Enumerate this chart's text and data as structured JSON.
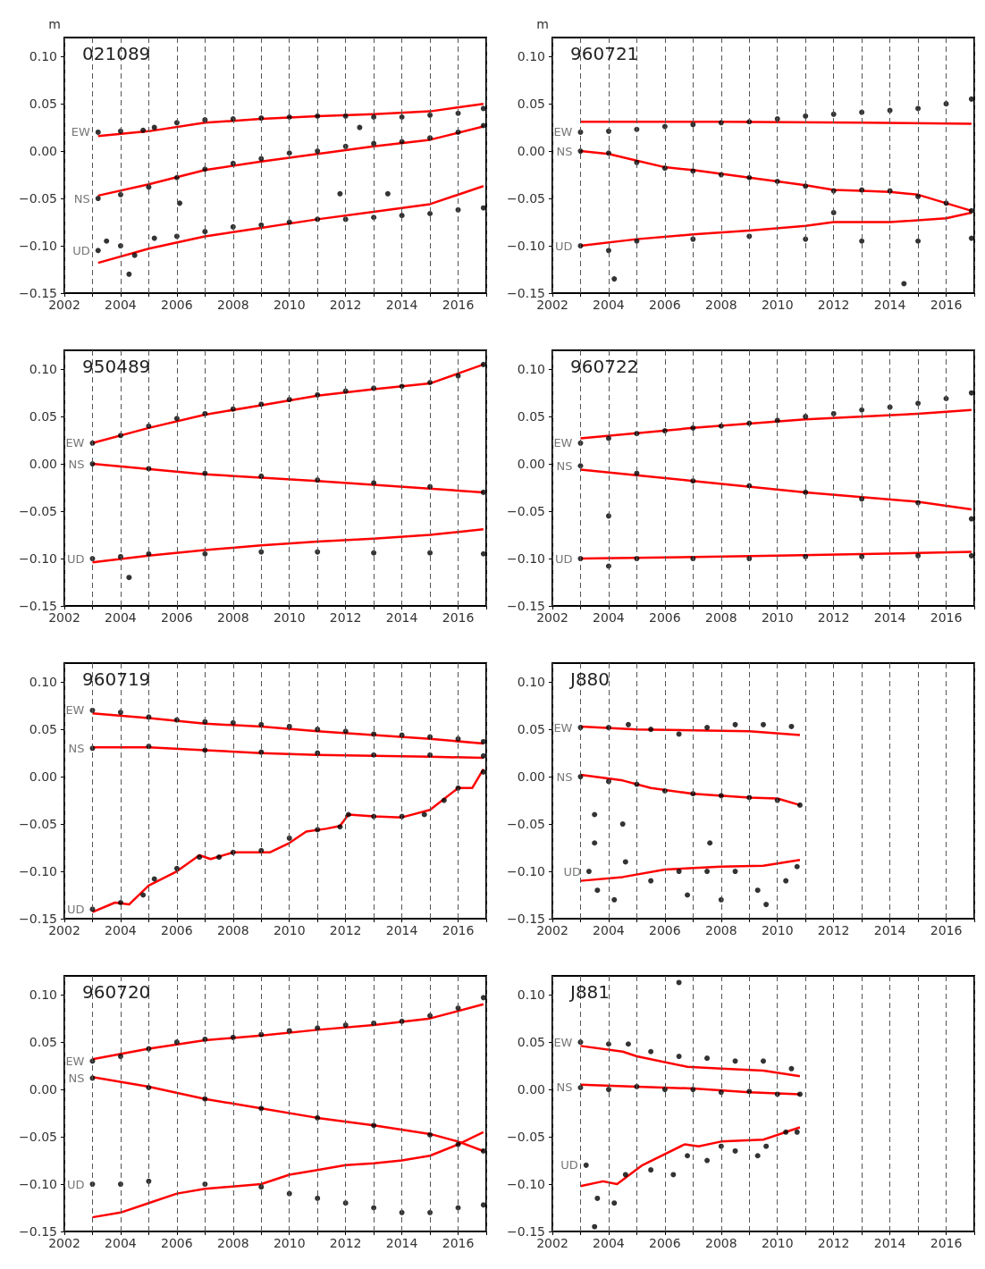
{
  "chart_data": [
    {
      "type": "scatter",
      "annotations": [
        "021089"
      ],
      "ylabel": "m",
      "xlim": [
        2002,
        2017
      ],
      "xticks": [
        2002,
        {
          "value": 2003,
          "label": null
        },
        2004,
        {
          "value": 2005,
          "label": null
        },
        2006,
        {
          "value": 2007,
          "label": null
        },
        2008,
        {
          "value": 2009,
          "label": null
        },
        2010,
        {
          "value": 2011,
          "label": null
        },
        2012,
        {
          "value": 2013,
          "label": null
        },
        2014,
        {
          "value": 2015,
          "label": null
        },
        2016,
        {
          "value": 2017,
          "label": null
        }
      ],
      "ylim": [
        -0.15,
        0.12
      ],
      "yticks": [
        {
          "value": -0.15,
          "label": "−0.15"
        },
        {
          "value": -0.1,
          "label": "−0.10"
        },
        {
          "value": -0.05,
          "label": "−0.05"
        },
        {
          "value": 0,
          "label": "0.00"
        },
        {
          "value": 0.05,
          "label": "0.05"
        },
        {
          "value": 0.1,
          "label": "0.10"
        }
      ],
      "grid": "x",
      "marker": "circle",
      "series": [
        {
          "name": "EW",
          "color": "#000000",
          "x": [
            2003.2,
            2004,
            2004.8,
            2005.2,
            2006,
            2007,
            2008,
            2009,
            2010,
            2011,
            2012,
            2012.5,
            2013,
            2014,
            2015,
            2016,
            2016.9
          ],
          "values": [
            0.02,
            0.021,
            0.022,
            0.025,
            0.03,
            0.033,
            0.034,
            0.035,
            0.036,
            0.037,
            0.037,
            0.025,
            0.036,
            0.036,
            0.038,
            0.04,
            0.045
          ]
        },
        {
          "type": "line",
          "marker": "none",
          "color": "#ff0000",
          "x": [
            2003.2,
            2005,
            2007,
            2009,
            2011,
            2013,
            2015,
            2016.9
          ],
          "values": [
            0.016,
            0.021,
            0.03,
            0.034,
            0.037,
            0.039,
            0.042,
            0.05
          ]
        },
        {
          "name": "NS",
          "color": "#000000",
          "x": [
            2003.2,
            2004,
            2005,
            2006,
            2007,
            2008,
            2009,
            2010,
            2011,
            2012,
            2013,
            2014,
            2015,
            2016,
            2016.9
          ],
          "values": [
            -0.05,
            -0.046,
            -0.038,
            -0.028,
            -0.019,
            -0.013,
            -0.008,
            -0.002,
            0,
            0.005,
            0.008,
            0.01,
            0.014,
            0.02,
            0.027
          ]
        },
        {
          "type": "line",
          "marker": "none",
          "color": "#ff0000",
          "x": [
            2003.2,
            2005,
            2007,
            2009,
            2011,
            2013,
            2015,
            2016.9
          ],
          "values": [
            -0.047,
            -0.035,
            -0.02,
            -0.011,
            -0.003,
            0.005,
            0.012,
            0.026
          ]
        },
        {
          "name": "UD",
          "color": "#000000",
          "x": [
            2003.2,
            2003.5,
            2004,
            2004.3,
            2004.5,
            2005.2,
            2006,
            2006.1,
            2007,
            2008,
            2009,
            2010,
            2011,
            2011.8,
            2012,
            2013,
            2013.5,
            2014,
            2015,
            2016,
            2016.9
          ],
          "values": [
            -0.105,
            -0.095,
            -0.1,
            -0.13,
            -0.11,
            -0.092,
            -0.09,
            -0.055,
            -0.085,
            -0.08,
            -0.078,
            -0.075,
            -0.072,
            -0.045,
            -0.072,
            -0.07,
            -0.045,
            -0.068,
            -0.066,
            -0.062,
            -0.06
          ]
        },
        {
          "type": "line",
          "marker": "none",
          "color": "#ff0000",
          "x": [
            2003.2,
            2005,
            2007,
            2009,
            2011,
            2013,
            2015,
            2016.9
          ],
          "values": [
            -0.118,
            -0.103,
            -0.09,
            -0.081,
            -0.072,
            -0.064,
            -0.056,
            -0.037
          ]
        }
      ]
    },
    {
      "type": "scatter",
      "annotations": [
        "960721"
      ],
      "ylabel": "m",
      "xlim": [
        2002,
        2017
      ],
      "xticks": [
        2002,
        {
          "value": 2003,
          "label": null
        },
        2004,
        {
          "value": 2005,
          "label": null
        },
        2006,
        {
          "value": 2007,
          "label": null
        },
        2008,
        {
          "value": 2009,
          "label": null
        },
        2010,
        {
          "value": 2011,
          "label": null
        },
        2012,
        {
          "value": 2013,
          "label": null
        },
        2014,
        {
          "value": 2015,
          "label": null
        },
        2016,
        {
          "value": 2017,
          "label": null
        }
      ],
      "ylim": [
        -0.15,
        0.12
      ],
      "yticks": [
        {
          "value": -0.15,
          "label": "−0.15"
        },
        {
          "value": -0.1,
          "label": "−0.10"
        },
        {
          "value": -0.05,
          "label": "−0.05"
        },
        {
          "value": 0,
          "label": "0.00"
        },
        {
          "value": 0.05,
          "label": "0.05"
        },
        {
          "value": 0.1,
          "label": "0.10"
        }
      ],
      "grid": "x",
      "marker": "circle",
      "series": [
        {
          "name": "EW",
          "color": "#000000",
          "x": [
            2003,
            2004,
            2005,
            2006,
            2007,
            2008,
            2009,
            2010,
            2011,
            2012,
            2013,
            2014,
            2015,
            2016,
            2016.9
          ],
          "values": [
            0.02,
            0.021,
            0.023,
            0.026,
            0.028,
            0.03,
            0.031,
            0.034,
            0.037,
            0.039,
            0.041,
            0.043,
            0.045,
            0.05,
            0.055
          ]
        },
        {
          "type": "line",
          "marker": "none",
          "color": "#ff0000",
          "x": [
            2003,
            2008,
            2013,
            2016.9
          ],
          "values": [
            0.031,
            0.031,
            0.03,
            0.029
          ]
        },
        {
          "name": "NS",
          "color": "#000000",
          "x": [
            2003,
            2004,
            2005,
            2006,
            2007,
            2008,
            2009,
            2010,
            2011,
            2012,
            2013,
            2014,
            2015,
            2016,
            2016.9
          ],
          "values": [
            0,
            -0.002,
            -0.012,
            -0.018,
            -0.021,
            -0.025,
            -0.028,
            -0.032,
            -0.037,
            -0.042,
            -0.041,
            -0.042,
            -0.048,
            -0.055,
            -0.063
          ]
        },
        {
          "type": "line",
          "marker": "none",
          "color": "#ff0000",
          "x": [
            2003,
            2004,
            2005,
            2006,
            2007,
            2008,
            2009,
            2010,
            2011,
            2012,
            2013,
            2014,
            2015,
            2016,
            2016.9
          ],
          "values": [
            0,
            -0.003,
            -0.01,
            -0.017,
            -0.02,
            -0.024,
            -0.028,
            -0.032,
            -0.036,
            -0.041,
            -0.042,
            -0.043,
            -0.046,
            -0.055,
            -0.063
          ]
        },
        {
          "name": "UD",
          "color": "#000000",
          "x": [
            2003,
            2004,
            2004.2,
            2005,
            2007,
            2009,
            2011,
            2012,
            2013,
            2014.5,
            2015,
            2016.9
          ],
          "values": [
            -0.1,
            -0.105,
            -0.135,
            -0.095,
            -0.093,
            -0.09,
            -0.093,
            -0.065,
            -0.095,
            -0.14,
            -0.095,
            -0.092
          ]
        },
        {
          "type": "line",
          "marker": "none",
          "color": "#ff0000",
          "x": [
            2003,
            2005,
            2007,
            2009,
            2011,
            2012,
            2014,
            2016,
            2016.9
          ],
          "values": [
            -0.1,
            -0.093,
            -0.088,
            -0.084,
            -0.079,
            -0.075,
            -0.075,
            -0.071,
            -0.065
          ]
        }
      ]
    },
    {
      "type": "scatter",
      "annotations": [
        "950489"
      ],
      "xlim": [
        2002,
        2017
      ],
      "xticks": [
        2002,
        {
          "value": 2003,
          "label": null
        },
        2004,
        {
          "value": 2005,
          "label": null
        },
        2006,
        {
          "value": 2007,
          "label": null
        },
        2008,
        {
          "value": 2009,
          "label": null
        },
        2010,
        {
          "value": 2011,
          "label": null
        },
        2012,
        {
          "value": 2013,
          "label": null
        },
        2014,
        {
          "value": 2015,
          "label": null
        },
        2016,
        {
          "value": 2017,
          "label": null
        }
      ],
      "ylim": [
        -0.15,
        0.12
      ],
      "yticks": [
        {
          "value": -0.15,
          "label": "−0.15"
        },
        {
          "value": -0.1,
          "label": "−0.10"
        },
        {
          "value": -0.05,
          "label": "−0.05"
        },
        {
          "value": 0,
          "label": "0.00"
        },
        {
          "value": 0.05,
          "label": "0.05"
        },
        {
          "value": 0.1,
          "label": "0.10"
        }
      ],
      "grid": "x",
      "marker": "circle",
      "series": [
        {
          "name": "EW",
          "color": "#000000",
          "x": [
            2003,
            2004,
            2005,
            2006,
            2007,
            2008,
            2009,
            2010,
            2011,
            2012,
            2013,
            2014,
            2015,
            2016,
            2016.9
          ],
          "values": [
            0.022,
            0.03,
            0.04,
            0.048,
            0.053,
            0.058,
            0.063,
            0.068,
            0.073,
            0.077,
            0.08,
            0.082,
            0.086,
            0.093,
            0.105
          ]
        },
        {
          "type": "line",
          "marker": "none",
          "color": "#ff0000",
          "x": [
            2003,
            2005,
            2007,
            2009,
            2011,
            2013,
            2015,
            2016.9
          ],
          "values": [
            0.022,
            0.038,
            0.052,
            0.062,
            0.072,
            0.079,
            0.085,
            0.105
          ]
        },
        {
          "name": "NS",
          "color": "#000000",
          "x": [
            2003,
            2005,
            2007,
            2009,
            2011,
            2013,
            2015,
            2016.9
          ],
          "values": [
            0,
            -0.005,
            -0.01,
            -0.013,
            -0.017,
            -0.02,
            -0.024,
            -0.03
          ]
        },
        {
          "type": "line",
          "marker": "none",
          "color": "#ff0000",
          "x": [
            2003,
            2007,
            2011,
            2016.9
          ],
          "values": [
            0,
            -0.011,
            -0.018,
            -0.03
          ]
        },
        {
          "name": "UD",
          "color": "#000000",
          "x": [
            2003,
            2004,
            2004.3,
            2005,
            2007,
            2009,
            2011,
            2013,
            2015,
            2016.9
          ],
          "values": [
            -0.1,
            -0.098,
            -0.12,
            -0.095,
            -0.095,
            -0.093,
            -0.093,
            -0.094,
            -0.094,
            -0.095
          ]
        },
        {
          "type": "line",
          "marker": "none",
          "color": "#ff0000",
          "x": [
            2003,
            2005,
            2007,
            2009,
            2011,
            2013,
            2015,
            2016.9
          ],
          "values": [
            -0.104,
            -0.097,
            -0.091,
            -0.086,
            -0.082,
            -0.079,
            -0.075,
            -0.069
          ]
        }
      ]
    },
    {
      "type": "scatter",
      "annotations": [
        "960722"
      ],
      "xlim": [
        2002,
        2017
      ],
      "xticks": [
        2002,
        {
          "value": 2003,
          "label": null
        },
        2004,
        {
          "value": 2005,
          "label": null
        },
        2006,
        {
          "value": 2007,
          "label": null
        },
        2008,
        {
          "value": 2009,
          "label": null
        },
        2010,
        {
          "value": 2011,
          "label": null
        },
        2012,
        {
          "value": 2013,
          "label": null
        },
        2014,
        {
          "value": 2015,
          "label": null
        },
        2016,
        {
          "value": 2017,
          "label": null
        }
      ],
      "ylim": [
        -0.15,
        0.12
      ],
      "yticks": [
        {
          "value": -0.15,
          "label": "−0.15"
        },
        {
          "value": -0.1,
          "label": "−0.10"
        },
        {
          "value": -0.05,
          "label": "−0.05"
        },
        {
          "value": 0,
          "label": "0.00"
        },
        {
          "value": 0.05,
          "label": "0.05"
        },
        {
          "value": 0.1,
          "label": "0.10"
        }
      ],
      "grid": "x",
      "marker": "circle",
      "series": [
        {
          "name": "EW",
          "color": "#000000",
          "x": [
            2003,
            2004,
            2005,
            2006,
            2007,
            2008,
            2009,
            2010,
            2011,
            2012,
            2013,
            2014,
            2015,
            2016,
            2016.9
          ],
          "values": [
            0.022,
            0.027,
            0.032,
            0.035,
            0.038,
            0.04,
            0.043,
            0.046,
            0.05,
            0.053,
            0.057,
            0.06,
            0.064,
            0.069,
            0.075
          ]
        },
        {
          "type": "line",
          "marker": "none",
          "color": "#ff0000",
          "x": [
            2003,
            2007,
            2011,
            2015,
            2016.9
          ],
          "values": [
            0.027,
            0.038,
            0.047,
            0.053,
            0.057
          ]
        },
        {
          "name": "NS",
          "color": "#000000",
          "x": [
            2003,
            2004,
            2005,
            2007,
            2009,
            2011,
            2013,
            2015,
            2016.9
          ],
          "values": [
            -0.002,
            -0.055,
            -0.01,
            -0.018,
            -0.023,
            -0.03,
            -0.037,
            -0.041,
            -0.058
          ]
        },
        {
          "type": "line",
          "marker": "none",
          "color": "#ff0000",
          "x": [
            2003,
            2007,
            2011,
            2015,
            2016.9
          ],
          "values": [
            -0.006,
            -0.018,
            -0.03,
            -0.04,
            -0.048
          ]
        },
        {
          "name": "UD",
          "color": "#000000",
          "x": [
            2003,
            2004,
            2005,
            2007,
            2009,
            2011,
            2013,
            2015,
            2016.9
          ],
          "values": [
            -0.1,
            -0.108,
            -0.1,
            -0.1,
            -0.1,
            -0.098,
            -0.098,
            -0.097,
            -0.097
          ]
        },
        {
          "type": "line",
          "marker": "none",
          "color": "#ff0000",
          "x": [
            2003,
            2010,
            2016.9
          ],
          "values": [
            -0.1,
            -0.097,
            -0.093
          ]
        }
      ]
    },
    {
      "type": "scatter",
      "annotations": [
        "960719"
      ],
      "xlim": [
        2002,
        2017
      ],
      "xticks": [
        2002,
        {
          "value": 2003,
          "label": null
        },
        2004,
        {
          "value": 2005,
          "label": null
        },
        2006,
        {
          "value": 2007,
          "label": null
        },
        2008,
        {
          "value": 2009,
          "label": null
        },
        2010,
        {
          "value": 2011,
          "label": null
        },
        2012,
        {
          "value": 2013,
          "label": null
        },
        2014,
        {
          "value": 2015,
          "label": null
        },
        2016,
        {
          "value": 2017,
          "label": null
        }
      ],
      "ylim": [
        -0.15,
        0.12
      ],
      "yticks": [
        {
          "value": -0.15,
          "label": "−0.15"
        },
        {
          "value": -0.1,
          "label": "−0.10"
        },
        {
          "value": -0.05,
          "label": "−0.05"
        },
        {
          "value": 0,
          "label": "0.00"
        },
        {
          "value": 0.05,
          "label": "0.05"
        },
        {
          "value": 0.1,
          "label": "0.10"
        }
      ],
      "grid": "x",
      "marker": "circle",
      "series": [
        {
          "name": "EW",
          "color": "#000000",
          "x": [
            2003,
            2004,
            2005,
            2006,
            2007,
            2008,
            2009,
            2010,
            2011,
            2012,
            2013,
            2014,
            2015,
            2016,
            2016.9
          ],
          "values": [
            0.07,
            0.068,
            0.063,
            0.06,
            0.058,
            0.057,
            0.055,
            0.053,
            0.05,
            0.048,
            0.045,
            0.044,
            0.042,
            0.04,
            0.037
          ]
        },
        {
          "type": "line",
          "marker": "none",
          "color": "#ff0000",
          "x": [
            2003,
            2005,
            2007,
            2009,
            2011,
            2013,
            2015,
            2016.9
          ],
          "values": [
            0.067,
            0.062,
            0.056,
            0.053,
            0.048,
            0.044,
            0.04,
            0.035
          ]
        },
        {
          "name": "NS",
          "color": "#000000",
          "x": [
            2003,
            2005,
            2007,
            2009,
            2011,
            2013,
            2015,
            2016.9
          ],
          "values": [
            0.03,
            0.032,
            0.028,
            0.026,
            0.025,
            0.023,
            0.023,
            0.022
          ]
        },
        {
          "type": "line",
          "marker": "none",
          "color": "#ff0000",
          "x": [
            2003,
            2005,
            2007,
            2009,
            2011,
            2013,
            2015,
            2016.9
          ],
          "values": [
            0.031,
            0.031,
            0.028,
            0.025,
            0.023,
            0.022,
            0.021,
            0.02
          ]
        },
        {
          "name": "UD",
          "color": "#000000",
          "x": [
            2003,
            2004,
            2004.8,
            2005.2,
            2006,
            2006.8,
            2007.5,
            2008,
            2009,
            2010,
            2011,
            2011.8,
            2012.1,
            2013,
            2014,
            2014.8,
            2015.5,
            2016,
            2016.9
          ],
          "values": [
            -0.14,
            -0.133,
            -0.125,
            -0.108,
            -0.097,
            -0.085,
            -0.085,
            -0.08,
            -0.078,
            -0.065,
            -0.056,
            -0.053,
            -0.04,
            -0.042,
            -0.042,
            -0.04,
            -0.025,
            -0.012,
            0.005
          ]
        },
        {
          "type": "line",
          "marker": "none",
          "color": "#ff0000",
          "x": [
            2003,
            2003.8,
            2004.3,
            2005,
            2006,
            2006.8,
            2007.2,
            2008,
            2009.3,
            2010,
            2010.6,
            2011.3,
            2011.8,
            2012.1,
            2013,
            2014,
            2015,
            2016,
            2016.5,
            2016.9
          ],
          "values": [
            -0.143,
            -0.133,
            -0.135,
            -0.115,
            -0.1,
            -0.083,
            -0.087,
            -0.08,
            -0.08,
            -0.07,
            -0.058,
            -0.055,
            -0.052,
            -0.04,
            -0.042,
            -0.043,
            -0.035,
            -0.012,
            -0.012,
            0.008
          ]
        }
      ]
    },
    {
      "type": "scatter",
      "annotations": [
        "J880"
      ],
      "xlim": [
        2002,
        2017
      ],
      "xticks": [
        2002,
        {
          "value": 2003,
          "label": null
        },
        2004,
        {
          "value": 2005,
          "label": null
        },
        2006,
        {
          "value": 2007,
          "label": null
        },
        2008,
        {
          "value": 2009,
          "label": null
        },
        2010,
        {
          "value": 2011,
          "label": null
        },
        2012,
        {
          "value": 2013,
          "label": null
        },
        2014,
        {
          "value": 2015,
          "label": null
        },
        2016,
        {
          "value": 2017,
          "label": null
        }
      ],
      "ylim": [
        -0.15,
        0.12
      ],
      "yticks": [
        {
          "value": -0.15,
          "label": "−0.15"
        },
        {
          "value": -0.1,
          "label": "−0.10"
        },
        {
          "value": -0.05,
          "label": "−0.05"
        },
        {
          "value": 0,
          "label": "0.00"
        },
        {
          "value": 0.05,
          "label": "0.05"
        },
        {
          "value": 0.1,
          "label": "0.10"
        }
      ],
      "grid": "x",
      "marker": "circle",
      "series": [
        {
          "name": "EW",
          "color": "#000000",
          "x": [
            2003,
            2004,
            2004.7,
            2005.5,
            2006.5,
            2007.5,
            2008.5,
            2009.5,
            2010.5
          ],
          "values": [
            0.052,
            0.052,
            0.055,
            0.05,
            0.045,
            0.052,
            0.055,
            0.055,
            0.053
          ]
        },
        {
          "type": "line",
          "marker": "none",
          "color": "#ff0000",
          "x": [
            2003,
            2005,
            2007,
            2009,
            2010.8
          ],
          "values": [
            0.053,
            0.05,
            0.049,
            0.048,
            0.044
          ]
        },
        {
          "name": "NS",
          "color": "#000000",
          "x": [
            2003,
            2003.5,
            2004,
            2004.5,
            2005,
            2006,
            2007,
            2008,
            2009,
            2010,
            2010.8
          ],
          "values": [
            0,
            -0.04,
            -0.005,
            -0.05,
            -0.008,
            -0.015,
            -0.018,
            -0.02,
            -0.022,
            -0.025,
            -0.03
          ]
        },
        {
          "type": "line",
          "marker": "none",
          "color": "#ff0000",
          "x": [
            2003,
            2004.5,
            2005.5,
            2007,
            2009,
            2010,
            2010.8
          ],
          "values": [
            0.002,
            -0.004,
            -0.012,
            -0.018,
            -0.022,
            -0.023,
            -0.03
          ]
        },
        {
          "name": "UD",
          "color": "#000000",
          "x": [
            2003.3,
            2003.5,
            2003.6,
            2004.2,
            2004.6,
            2005.5,
            2006.5,
            2006.8,
            2007.5,
            2007.6,
            2008,
            2008.5,
            2009.3,
            2009.6,
            2010.3,
            2010.7
          ],
          "values": [
            -0.1,
            -0.07,
            -0.12,
            -0.13,
            -0.09,
            -0.11,
            -0.1,
            -0.125,
            -0.1,
            -0.07,
            -0.13,
            -0.1,
            -0.12,
            -0.135,
            -0.11,
            -0.095
          ]
        },
        {
          "type": "line",
          "marker": "none",
          "color": "#ff0000",
          "x": [
            2003,
            2004.5,
            2006,
            2008,
            2009.5,
            2010.8
          ],
          "values": [
            -0.11,
            -0.106,
            -0.098,
            -0.095,
            -0.094,
            -0.088
          ]
        }
      ]
    },
    {
      "type": "scatter",
      "annotations": [
        "960720"
      ],
      "xlim": [
        2002,
        2017
      ],
      "xticks": [
        2002,
        {
          "value": 2003,
          "label": null
        },
        2004,
        {
          "value": 2005,
          "label": null
        },
        2006,
        {
          "value": 2007,
          "label": null
        },
        2008,
        {
          "value": 2009,
          "label": null
        },
        2010,
        {
          "value": 2011,
          "label": null
        },
        2012,
        {
          "value": 2013,
          "label": null
        },
        2014,
        {
          "value": 2015,
          "label": null
        },
        2016,
        {
          "value": 2017,
          "label": null
        }
      ],
      "ylim": [
        -0.15,
        0.12
      ],
      "yticks": [
        {
          "value": -0.15,
          "label": "−0.15"
        },
        {
          "value": -0.1,
          "label": "−0.10"
        },
        {
          "value": -0.05,
          "label": "−0.05"
        },
        {
          "value": 0,
          "label": "0.00"
        },
        {
          "value": 0.05,
          "label": "0.05"
        },
        {
          "value": 0.1,
          "label": "0.10"
        }
      ],
      "grid": "x",
      "marker": "circle",
      "series": [
        {
          "name": "EW",
          "color": "#000000",
          "x": [
            2003,
            2004,
            2005,
            2006,
            2007,
            2008,
            2009,
            2010,
            2011,
            2012,
            2013,
            2014,
            2015,
            2016,
            2016.9
          ],
          "values": [
            0.03,
            0.035,
            0.043,
            0.05,
            0.053,
            0.055,
            0.058,
            0.062,
            0.065,
            0.068,
            0.07,
            0.072,
            0.078,
            0.086,
            0.097
          ]
        },
        {
          "type": "line",
          "marker": "none",
          "color": "#ff0000",
          "x": [
            2003,
            2005,
            2007,
            2009,
            2011,
            2013,
            2015,
            2016.9
          ],
          "values": [
            0.032,
            0.043,
            0.052,
            0.057,
            0.063,
            0.068,
            0.075,
            0.09
          ]
        },
        {
          "name": "NS",
          "color": "#000000",
          "x": [
            2003,
            2005,
            2007,
            2009,
            2011,
            2013,
            2015,
            2016,
            2016.9
          ],
          "values": [
            0.012,
            0.002,
            -0.01,
            -0.02,
            -0.03,
            -0.038,
            -0.048,
            -0.058,
            -0.065
          ]
        },
        {
          "type": "line",
          "marker": "none",
          "color": "#ff0000",
          "x": [
            2003,
            2005,
            2007,
            2009,
            2011,
            2013,
            2015,
            2016,
            2016.9
          ],
          "values": [
            0.013,
            0.003,
            -0.01,
            -0.02,
            -0.03,
            -0.038,
            -0.047,
            -0.055,
            -0.065
          ]
        },
        {
          "name": "UD",
          "color": "#000000",
          "x": [
            2003,
            2004,
            2005,
            2007,
            2009,
            2010,
            2011,
            2012,
            2013,
            2014,
            2015,
            2016,
            2016.9
          ],
          "values": [
            -0.1,
            -0.1,
            -0.097,
            -0.1,
            -0.103,
            -0.11,
            -0.115,
            -0.12,
            -0.125,
            -0.13,
            -0.13,
            -0.125,
            -0.122
          ]
        },
        {
          "type": "line",
          "marker": "none",
          "color": "#ff0000",
          "x": [
            2003,
            2004,
            2005,
            2006,
            2007,
            2009,
            2010,
            2011,
            2012,
            2013,
            2014,
            2015,
            2016,
            2016.9
          ],
          "values": [
            -0.135,
            -0.13,
            -0.12,
            -0.11,
            -0.105,
            -0.1,
            -0.09,
            -0.085,
            -0.08,
            -0.078,
            -0.075,
            -0.07,
            -0.058,
            -0.045
          ]
        }
      ]
    },
    {
      "type": "scatter",
      "annotations": [
        "J881"
      ],
      "xlim": [
        2002,
        2017
      ],
      "xticks": [
        2002,
        {
          "value": 2003,
          "label": null
        },
        2004,
        {
          "value": 2005,
          "label": null
        },
        2006,
        {
          "value": 2007,
          "label": null
        },
        2008,
        {
          "value": 2009,
          "label": null
        },
        2010,
        {
          "value": 2011,
          "label": null
        },
        2012,
        {
          "value": 2013,
          "label": null
        },
        2014,
        {
          "value": 2015,
          "label": null
        },
        2016,
        {
          "value": 2017,
          "label": null
        }
      ],
      "ylim": [
        -0.15,
        0.12
      ],
      "yticks": [
        {
          "value": -0.15,
          "label": "−0.15"
        },
        {
          "value": -0.1,
          "label": "−0.10"
        },
        {
          "value": -0.05,
          "label": "−0.05"
        },
        {
          "value": 0,
          "label": "0.00"
        },
        {
          "value": 0.05,
          "label": "0.05"
        },
        {
          "value": 0.1,
          "label": "0.10"
        }
      ],
      "grid": "x",
      "marker": "circle",
      "series": [
        {
          "name": "EW",
          "color": "#000000",
          "x": [
            2003,
            2004,
            2004.7,
            2005.5,
            2006.5,
            2007.5,
            2008.5,
            2009.5,
            2010.5
          ],
          "values": [
            0.05,
            0.048,
            0.048,
            0.04,
            0.035,
            0.033,
            0.03,
            0.03,
            0.022
          ]
        },
        {
          "type": "line",
          "marker": "none",
          "color": "#ff0000",
          "x": [
            2003,
            2004.5,
            2005,
            2006.8,
            2008,
            2009.5,
            2010.8
          ],
          "values": [
            0.046,
            0.04,
            0.035,
            0.024,
            0.022,
            0.02,
            0.014
          ]
        },
        {
          "name": "NS",
          "color": "#000000",
          "x": [
            2003,
            2004,
            2005,
            2006,
            2007,
            2008,
            2009,
            2010,
            2010.8
          ],
          "values": [
            0.002,
            0,
            0.003,
            0,
            0,
            -0.003,
            -0.002,
            -0.005,
            -0.005
          ]
        },
        {
          "type": "line",
          "marker": "none",
          "color": "#ff0000",
          "x": [
            2003,
            2005,
            2007,
            2009,
            2010.8
          ],
          "values": [
            0.005,
            0.003,
            0.001,
            -0.003,
            -0.005
          ]
        },
        {
          "name": "UD",
          "color": "#000000",
          "x": [
            2003.2,
            2003.5,
            2003.6,
            2004.2,
            2004.6,
            2005.5,
            2006.3,
            2006.5,
            2006.8,
            2007.5,
            2008,
            2008.5,
            2009.3,
            2009.6,
            2010.3,
            2010.7
          ],
          "values": [
            -0.08,
            -0.145,
            -0.115,
            -0.12,
            -0.09,
            -0.085,
            -0.09,
            0.113,
            -0.07,
            -0.075,
            -0.06,
            -0.065,
            -0.07,
            -0.06,
            -0.045,
            -0.045
          ]
        },
        {
          "type": "line",
          "marker": "none",
          "color": "#ff0000",
          "x": [
            2003,
            2003.8,
            2004.3,
            2005.2,
            2006.7,
            2007.2,
            2008,
            2009.5,
            2010.3,
            2010.8
          ],
          "values": [
            -0.102,
            -0.097,
            -0.1,
            -0.08,
            -0.058,
            -0.06,
            -0.055,
            -0.053,
            -0.045,
            -0.04
          ]
        }
      ]
    }
  ]
}
